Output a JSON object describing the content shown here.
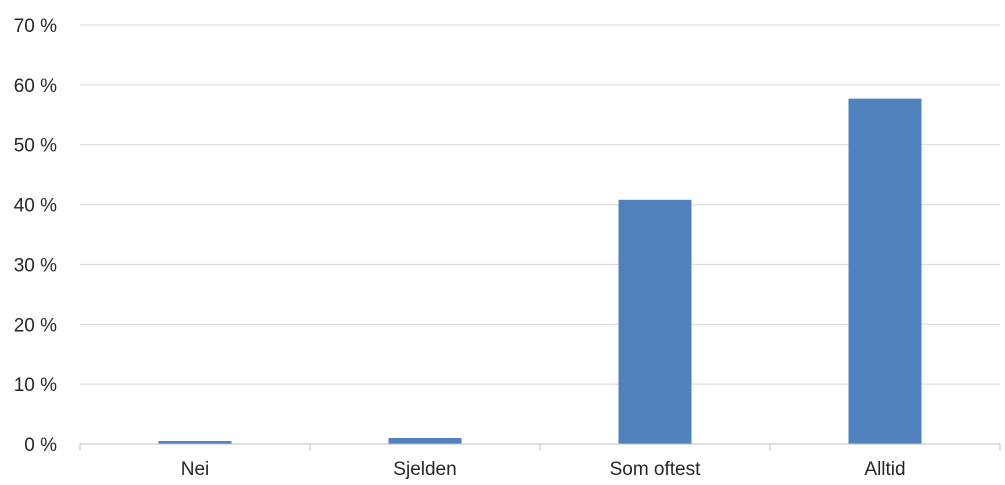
{
  "chart_data": {
    "type": "bar",
    "categories": [
      "Nei",
      "Sjelden",
      "Som oftest",
      "Alltid"
    ],
    "values": [
      0.5,
      1.0,
      40.8,
      57.7
    ],
    "y_ticks": [
      "0 %",
      "10 %",
      "20 %",
      "30 %",
      "40 %",
      "50 %",
      "60 %",
      "70 %"
    ],
    "ylim": [
      0,
      70
    ],
    "grid": true,
    "legend": "none",
    "title": "",
    "xlabel": "",
    "ylabel": "",
    "colors": {
      "bar": "#4f81bd",
      "grid": "#d9d9d9",
      "axis": "#bfbfbf"
    }
  }
}
